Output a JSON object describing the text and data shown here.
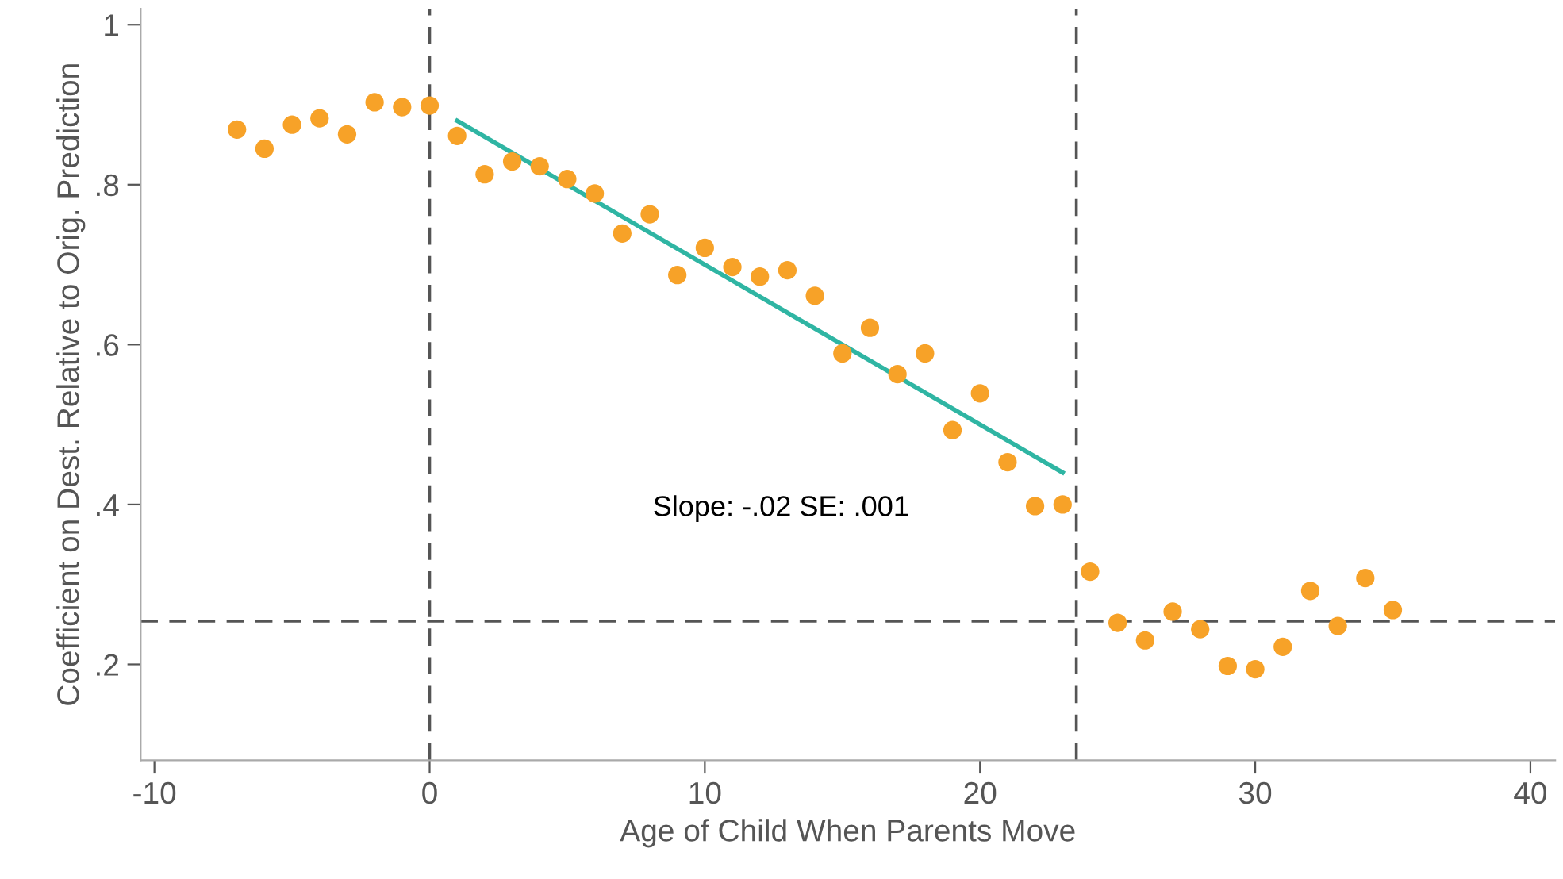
{
  "chart_data": {
    "type": "scatter",
    "xlabel": "Age of Child When Parents Move",
    "ylabel": "Coefficient on Dest. Relative to Orig. Prediction",
    "series": [
      {
        "color": "#f7a228",
        "marker": "circle",
        "x": [
          -7,
          -6,
          -5,
          -4,
          -3,
          -2,
          -1,
          0,
          1,
          2,
          3,
          4,
          5,
          6,
          7,
          8,
          9,
          10,
          11,
          12,
          13,
          14,
          15,
          16,
          17,
          18,
          19,
          20,
          21,
          22,
          23,
          24,
          25,
          26,
          27,
          28,
          29,
          30,
          31,
          32,
          33,
          34,
          35
        ],
        "values": [
          0.869,
          0.845,
          0.875,
          0.883,
          0.863,
          0.903,
          0.897,
          0.899,
          0.861,
          0.813,
          0.829,
          0.823,
          0.807,
          0.789,
          0.739,
          0.763,
          0.687,
          0.721,
          0.697,
          0.685,
          0.693,
          0.661,
          0.589,
          0.621,
          0.563,
          0.589,
          0.493,
          0.539,
          0.453,
          0.398,
          0.4,
          0.316,
          0.252,
          0.23,
          0.266,
          0.244,
          0.198,
          0.194,
          0.222,
          0.292,
          0.248,
          0.308,
          0.268
        ]
      },
      {
        "type": "line",
        "color": "#2fb5a3",
        "marker": "none",
        "line_style": "solid",
        "x": [
          1,
          23
        ],
        "values": [
          0.88,
          0.44
        ]
      }
    ],
    "ref_lines": [
      {
        "axis": "x",
        "value": 0,
        "color": "#555555",
        "line_style": "dashed"
      },
      {
        "axis": "x",
        "value": 23.5,
        "color": "#555555",
        "line_style": "dashed"
      },
      {
        "axis": "y",
        "value": 0.254,
        "color": "#555555",
        "line_style": "dashed"
      }
    ],
    "annotations": [
      "Slope: -.02 SE: .001"
    ],
    "xlim": [
      -10.5,
      40.9
    ],
    "ylim": [
      0.08,
      1.02
    ],
    "xticks": [
      -10,
      0,
      10,
      20,
      30,
      40
    ],
    "yticks": [
      {
        "value": 0.2,
        "label": ".2"
      },
      {
        "value": 0.4,
        "label": ".4"
      },
      {
        "value": 0.6,
        "label": ".6"
      },
      {
        "value": 0.8,
        "label": ".8"
      },
      1
    ],
    "grid": false,
    "legend": false
  }
}
